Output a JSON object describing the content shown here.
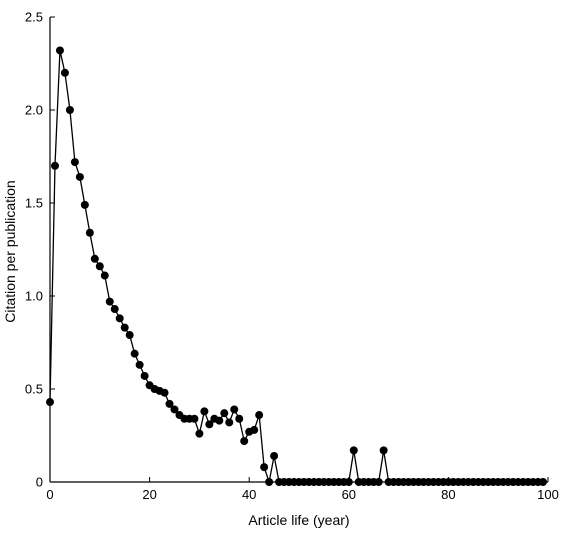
{
  "chart_data": {
    "type": "line",
    "xlabel": "Article life (year)",
    "ylabel": "Citation per publication",
    "xlim": [
      0,
      100
    ],
    "ylim": [
      0,
      2.5
    ],
    "xticks": [
      0,
      20,
      40,
      60,
      80,
      100
    ],
    "yticks": [
      0,
      0.5,
      1.0,
      1.5,
      2.0,
      2.5
    ],
    "xtick_labels": [
      "0",
      "20",
      "40",
      "60",
      "80",
      "100"
    ],
    "ytick_labels": [
      "0",
      "0.5",
      "1.0",
      "1.5",
      "2.0",
      "2.5"
    ],
    "grid": false,
    "legend": false,
    "marker": "filled-circle",
    "line_color": "#000000",
    "series": [
      {
        "x": [
          0,
          1,
          2,
          3,
          4,
          5,
          6,
          7,
          8,
          9,
          10,
          11,
          12,
          13,
          14,
          15,
          16,
          17,
          18,
          19,
          20,
          21,
          22,
          23,
          24,
          25,
          26,
          27,
          28,
          29,
          30,
          31,
          32,
          33,
          34,
          35,
          36,
          37,
          38,
          39,
          40,
          41,
          42,
          43,
          44,
          45,
          46,
          47,
          48,
          49,
          50,
          51,
          52,
          53,
          54,
          55,
          56,
          57,
          58,
          59,
          60,
          61,
          62,
          63,
          64,
          65,
          66,
          67,
          68,
          69,
          70,
          71,
          72,
          73,
          74,
          75,
          76,
          77,
          78,
          79,
          80,
          81,
          82,
          83,
          84,
          85,
          86,
          87,
          88,
          89,
          90,
          91,
          92,
          93,
          94,
          95,
          96,
          97,
          98,
          99
        ],
        "values": [
          0.43,
          1.7,
          2.32,
          2.2,
          2.0,
          1.72,
          1.64,
          1.49,
          1.34,
          1.2,
          1.16,
          1.11,
          0.97,
          0.93,
          0.88,
          0.83,
          0.79,
          0.69,
          0.63,
          0.57,
          0.52,
          0.5,
          0.49,
          0.48,
          0.42,
          0.39,
          0.36,
          0.34,
          0.34,
          0.34,
          0.26,
          0.38,
          0.31,
          0.34,
          0.33,
          0.37,
          0.32,
          0.39,
          0.34,
          0.22,
          0.27,
          0.28,
          0.36,
          0.08,
          0.0,
          0.14,
          0.0,
          0.0,
          0.0,
          0.0,
          0.0,
          0.0,
          0.0,
          0.0,
          0.0,
          0.0,
          0.0,
          0.0,
          0.0,
          0.0,
          0.0,
          0.17,
          0.0,
          0.0,
          0.0,
          0.0,
          0.0,
          0.17,
          0.0,
          0.0,
          0.0,
          0.0,
          0.0,
          0.0,
          0.0,
          0.0,
          0.0,
          0.0,
          0.0,
          0.0,
          0.0,
          0.0,
          0.0,
          0.0,
          0.0,
          0.0,
          0.0,
          0.0,
          0.0,
          0.0,
          0.0,
          0.0,
          0.0,
          0.0,
          0.0,
          0.0,
          0.0,
          0.0,
          0.0,
          0.0
        ]
      }
    ]
  }
}
